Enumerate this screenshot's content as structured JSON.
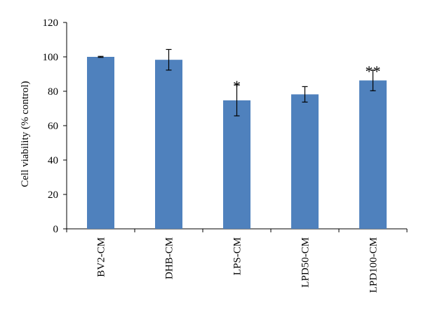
{
  "chart_data": {
    "type": "bar",
    "categories": [
      "BV2-CM",
      "DHB-CM",
      "LPS-CM",
      "LPD50-CM",
      "LPD100-CM"
    ],
    "values": [
      100,
      98.3,
      74.7,
      78.2,
      86.3
    ],
    "error": [
      0.3,
      6,
      9,
      4.5,
      6
    ],
    "annotations": [
      "",
      "",
      "*",
      "",
      "**"
    ],
    "title": "",
    "xlabel": "",
    "ylabel": "Cell viability (% control)",
    "ylim": [
      0,
      120
    ],
    "yticks": [
      0,
      20,
      40,
      60,
      80,
      100,
      120
    ],
    "bar_color": "#4f81bd",
    "grid": false
  }
}
